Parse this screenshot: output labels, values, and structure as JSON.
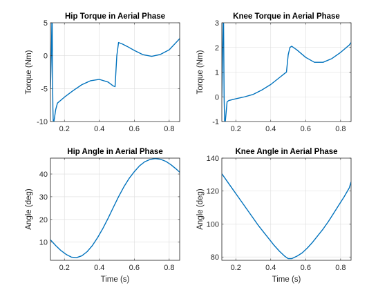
{
  "chart_data": [
    {
      "type": "line",
      "title": "Hip Torque in Aerial Phase",
      "xlabel": "",
      "ylabel": "Torque (Nm)",
      "xlim": [
        0.12,
        0.86
      ],
      "ylim": [
        -10,
        5
      ],
      "xticks": [
        "0.2",
        "0.4",
        "0.6",
        "0.8"
      ],
      "xtick_values": [
        0.2,
        0.4,
        0.6,
        0.8
      ],
      "yticks": [
        "-10",
        "-5",
        "0",
        "5"
      ],
      "ytick_values": [
        -10,
        -5,
        0,
        5
      ],
      "grid": true,
      "color": "#0072bd",
      "series": [
        {
          "x": [
            0.12,
            0.125,
            0.128,
            0.13,
            0.132,
            0.134,
            0.136,
            0.14,
            0.15,
            0.16,
            0.2,
            0.25,
            0.3,
            0.35,
            0.4,
            0.45,
            0.48,
            0.49,
            0.5,
            0.51,
            0.53,
            0.56,
            0.6,
            0.65,
            0.7,
            0.75,
            0.8,
            0.85,
            0.86
          ],
          "y": [
            -5,
            0,
            5,
            5,
            -3,
            -8,
            -10,
            -10,
            -8.2,
            -7.2,
            -6.3,
            -5.3,
            -4.4,
            -3.8,
            -3.6,
            -4.0,
            -4.6,
            -4.7,
            0.0,
            2.0,
            1.8,
            1.4,
            0.8,
            0.15,
            -0.1,
            0.2,
            0.9,
            2.3,
            2.6
          ]
        }
      ]
    },
    {
      "type": "line",
      "title": "Knee Torque in Aerial Phase",
      "xlabel": "",
      "ylabel": "Torque (Nm)",
      "xlim": [
        0.12,
        0.86
      ],
      "ylim": [
        -1,
        3
      ],
      "xticks": [
        "0.2",
        "0.4",
        "0.6",
        "0.8"
      ],
      "xtick_values": [
        0.2,
        0.4,
        0.6,
        0.8
      ],
      "yticks": [
        "-1",
        "0",
        "1",
        "2",
        "3"
      ],
      "ytick_values": [
        -1,
        0,
        1,
        2,
        3
      ],
      "grid": true,
      "color": "#0072bd",
      "series": [
        {
          "x": [
            0.12,
            0.125,
            0.128,
            0.13,
            0.133,
            0.136,
            0.14,
            0.15,
            0.16,
            0.2,
            0.25,
            0.3,
            0.35,
            0.4,
            0.45,
            0.48,
            0.49,
            0.5,
            0.51,
            0.52,
            0.55,
            0.6,
            0.65,
            0.7,
            0.75,
            0.8,
            0.85,
            0.86
          ],
          "y": [
            0.0,
            2.0,
            3.0,
            3.0,
            0.0,
            -1.0,
            -1.0,
            -0.2,
            -0.15,
            -0.08,
            0.0,
            0.1,
            0.28,
            0.5,
            0.78,
            0.95,
            1.0,
            1.7,
            2.0,
            2.05,
            1.9,
            1.6,
            1.4,
            1.4,
            1.55,
            1.8,
            2.1,
            2.2
          ]
        }
      ]
    },
    {
      "type": "line",
      "title": "Hip Angle in Aerial Phase",
      "xlabel": "Time (s)",
      "ylabel": "Angle (deg)",
      "xlim": [
        0.12,
        0.86
      ],
      "ylim": [
        2,
        47
      ],
      "xticks": [
        "0.2",
        "0.4",
        "0.6",
        "0.8"
      ],
      "xtick_values": [
        0.2,
        0.4,
        0.6,
        0.8
      ],
      "yticks": [
        "10",
        "20",
        "30",
        "40"
      ],
      "ytick_values": [
        10,
        20,
        30,
        40
      ],
      "grid": true,
      "color": "#0072bd",
      "series": [
        {
          "x": [
            0.12,
            0.15,
            0.18,
            0.21,
            0.24,
            0.27,
            0.3,
            0.33,
            0.36,
            0.39,
            0.42,
            0.45,
            0.48,
            0.51,
            0.54,
            0.57,
            0.6,
            0.63,
            0.66,
            0.69,
            0.72,
            0.75,
            0.78,
            0.81,
            0.84,
            0.86
          ],
          "y": [
            11.0,
            8.5,
            6.3,
            4.6,
            3.4,
            3.2,
            4.0,
            5.8,
            8.5,
            12.0,
            16.0,
            20.5,
            25.3,
            30.0,
            34.3,
            38.0,
            41.0,
            43.6,
            45.4,
            46.4,
            46.8,
            46.5,
            45.6,
            44.1,
            42.2,
            40.8
          ]
        }
      ]
    },
    {
      "type": "line",
      "title": "Knee Angle in Aerial Phase",
      "xlabel": "Time (s)",
      "ylabel": "Angle (deg)",
      "xlim": [
        0.12,
        0.86
      ],
      "ylim": [
        78,
        140
      ],
      "xticks": [
        "0.2",
        "0.4",
        "0.6",
        "0.8"
      ],
      "xtick_values": [
        0.2,
        0.4,
        0.6,
        0.8
      ],
      "yticks": [
        "80",
        "100",
        "120",
        "140"
      ],
      "ytick_values": [
        80,
        100,
        120,
        140
      ],
      "grid": true,
      "color": "#0072bd",
      "series": [
        {
          "x": [
            0.12,
            0.15,
            0.18,
            0.21,
            0.24,
            0.27,
            0.3,
            0.33,
            0.36,
            0.39,
            0.42,
            0.45,
            0.48,
            0.5,
            0.52,
            0.55,
            0.58,
            0.61,
            0.64,
            0.67,
            0.7,
            0.73,
            0.76,
            0.79,
            0.82,
            0.85,
            0.86
          ],
          "y": [
            130.5,
            126.0,
            121.5,
            117.0,
            112.5,
            108.0,
            103.5,
            99.0,
            95.0,
            91.0,
            87.0,
            83.5,
            80.5,
            79.0,
            79.0,
            80.5,
            82.5,
            85.5,
            89.0,
            93.0,
            97.0,
            101.5,
            106.5,
            111.5,
            116.5,
            122.0,
            125.5
          ]
        }
      ]
    }
  ]
}
